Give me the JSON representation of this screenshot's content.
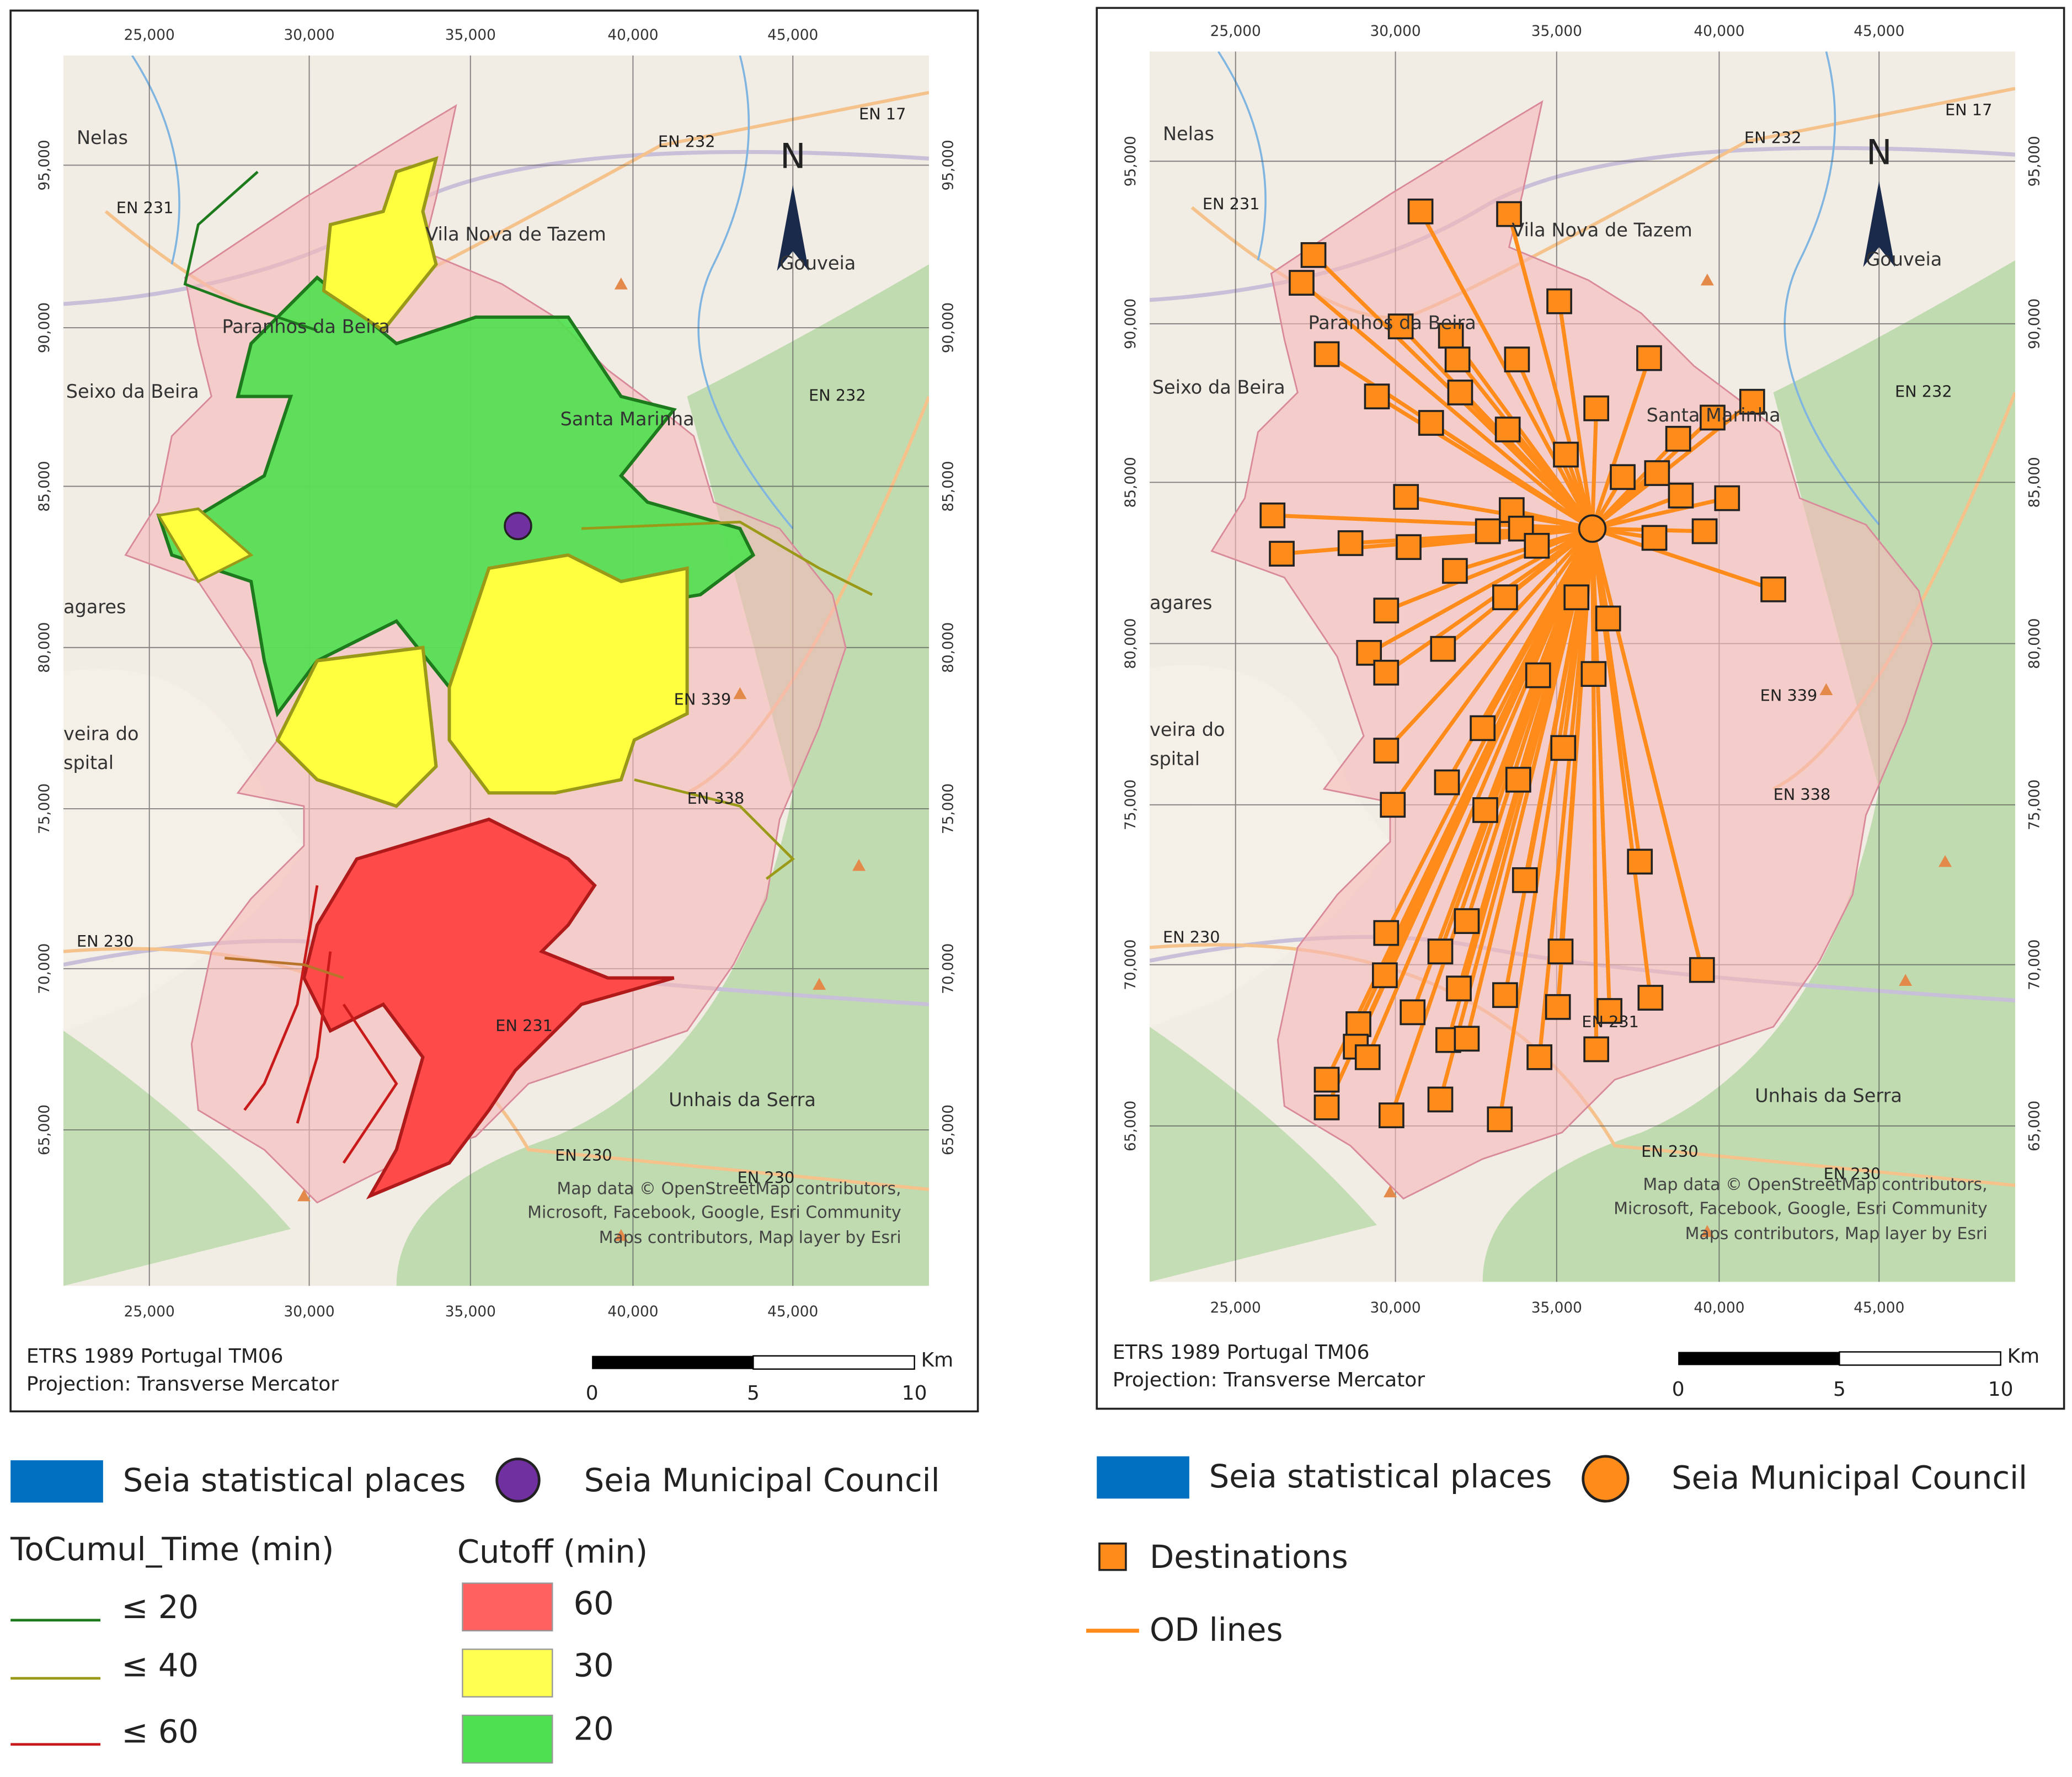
{
  "maps": [
    {
      "x_ticks": [
        "25,000",
        "30,000",
        "35,000",
        "40,000",
        "45,000"
      ],
      "y_ticks": [
        "95,000",
        "90,000",
        "85,000",
        "80,000",
        "75,000",
        "70,000",
        "65,000"
      ],
      "north": "N",
      "places": [
        "Nelas",
        "EN 231",
        "Vila Nova de Tazem",
        "Gouveia",
        "Paranhos da Beira",
        "Seixo da Beira",
        "EN 232",
        "EN 17",
        "EN 232",
        "Santa Marinha",
        "EN 339",
        "EN 338",
        "EN 230",
        "EN 230",
        "EN 230",
        "EN 231",
        "Unhais da Serra",
        "agares",
        "veira do",
        "spital"
      ],
      "attribution": [
        "Map data © OpenStreetMap contributors,",
        "Microsoft, Facebook, Google, Esri Community",
        "Maps contributors, Map layer by Esri"
      ],
      "crs": "ETRS 1989 Portugal TM06",
      "projection": "Projection: Transverse Mercator",
      "scale": {
        "unit": "Km",
        "labels": [
          "0",
          "5",
          "10"
        ]
      }
    },
    {
      "x_ticks": [
        "25,000",
        "30,000",
        "35,000",
        "40,000",
        "45,000"
      ],
      "y_ticks": [
        "95,000",
        "90,000",
        "85,000",
        "80,000",
        "75,000",
        "70,000",
        "65,000"
      ],
      "north": "N",
      "places": [
        "Nelas",
        "EN 231",
        "Vila Nova de Tazem",
        "Gouveia",
        "Paranhos da Beira",
        "Seixo da Beira",
        "EN 232",
        "EN 17",
        "EN 232",
        "Santa Marinha",
        "EN 339",
        "EN 338",
        "EN 230",
        "EN 230",
        "EN 230",
        "EN 231",
        "Unhais da Serra",
        "agares",
        "veira do",
        "spital"
      ],
      "attribution": [
        "Map data © OpenStreetMap contributors,",
        "Microsoft, Facebook, Google, Esri Community",
        "Maps contributors, Map layer by Esri"
      ],
      "crs": "ETRS 1989 Portugal TM06",
      "projection": "Projection: Transverse Mercator",
      "scale": {
        "unit": "Km",
        "labels": [
          "0",
          "5",
          "10"
        ]
      }
    }
  ],
  "legend_left": {
    "places": "Seia statistical places",
    "council": "Seia Municipal Council",
    "time_title": "ToCumul_Time (min)",
    "time_items": [
      "≤ 20",
      "≤ 40",
      "≤ 60"
    ],
    "cutoff_title": "Cutoff (min)",
    "cutoff_items": [
      "60",
      "30",
      "20"
    ]
  },
  "legend_right": {
    "places": "Seia statistical places",
    "council": "Seia Municipal Council",
    "destinations": "Destinations",
    "od_lines": "OD lines"
  }
}
